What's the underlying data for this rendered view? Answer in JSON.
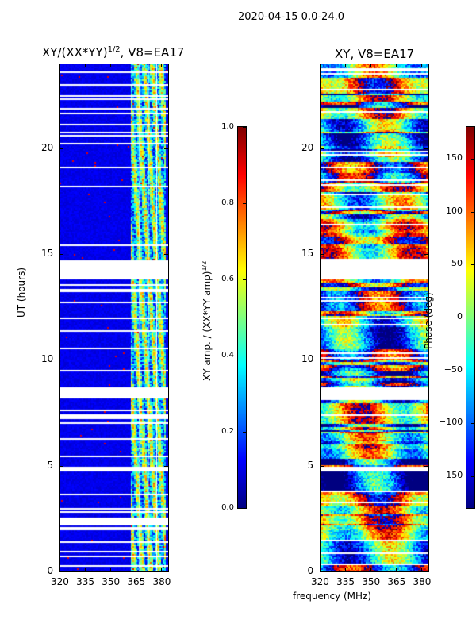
{
  "suptitle": "2020-04-15 0.0-24.0",
  "chart_data": [
    {
      "type": "heatmap",
      "title": "XY/(XX*YY)^1/2, V8=EA17",
      "title_main": "XY/(XX*YY)",
      "title_exp": "1/2",
      "title_suffix": ", V8=EA17",
      "xlabel": "frequency (MHz)",
      "ylabel": "UT (hours)",
      "xlim": [
        320,
        384
      ],
      "ylim": [
        0,
        24
      ],
      "xticks": [
        "320",
        "335",
        "350",
        "365",
        "380"
      ],
      "yticks": [
        "0",
        "5",
        "10",
        "15",
        "20"
      ],
      "colormap": "jet",
      "clim": [
        0,
        1
      ],
      "colorbar_label": "XY amp. / (XX*YY amp)",
      "colorbar_label_exp": "1/2",
      "colorbar_ticks": [
        "0.0",
        "0.2",
        "0.4",
        "0.6",
        "0.8",
        "1.0"
      ],
      "flagged_time_ranges": [
        [
          4.75,
          5.0
        ],
        [
          8.25,
          8.75
        ],
        [
          13.8,
          14.75
        ]
      ],
      "high_amplitude_band_mhz": [
        362,
        382
      ],
      "typical_value_low_band": 0.1,
      "typical_value_high_band": 0.45
    },
    {
      "type": "heatmap",
      "title": "XY, V8=EA17",
      "xlabel": "frequency (MHz)",
      "ylabel": "",
      "xlim": [
        320,
        384
      ],
      "ylim": [
        0,
        24
      ],
      "xticks": [
        "320",
        "335",
        "350",
        "365",
        "380"
      ],
      "yticks": [
        "0",
        "5",
        "10",
        "15",
        "20"
      ],
      "colormap": "jet",
      "clim": [
        -180,
        180
      ],
      "colorbar_label": "Phase (deg)",
      "colorbar_ticks": [
        "−150",
        "−100",
        "−50",
        "0",
        "50",
        "100",
        "150"
      ],
      "flagged_time_ranges": [
        [
          4.75,
          5.0
        ],
        [
          8.25,
          8.75
        ],
        [
          13.8,
          14.75
        ]
      ]
    }
  ]
}
